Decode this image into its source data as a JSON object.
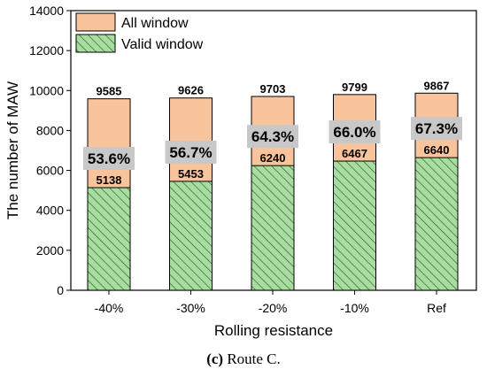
{
  "chart_data": {
    "type": "bar",
    "categories": [
      "-40%",
      "-30%",
      "-20%",
      "-10%",
      "Ref"
    ],
    "series": [
      {
        "name": "All window",
        "values": [
          9585,
          9626,
          9703,
          9799,
          9867
        ],
        "color": "#f9c49b",
        "pattern": "solid"
      },
      {
        "name": "Valid window",
        "values": [
          5138,
          5453,
          6240,
          6467,
          6640
        ],
        "color": "#a8dca0",
        "pattern": "hatched"
      }
    ],
    "valid_ratio_labels": [
      "53.6%",
      "56.7%",
      "64.3%",
      "66.0%",
      "67.3%"
    ],
    "xlabel": "Rolling resistance",
    "ylabel": "The number of MAW",
    "ylim": [
      0,
      14000
    ],
    "yticks": [
      0,
      2000,
      4000,
      6000,
      8000,
      10000,
      12000,
      14000
    ],
    "grid": false,
    "legend_position": "top-left"
  },
  "caption": {
    "letter": "(c)",
    "text": "Route C."
  },
  "colors": {
    "all_fill": "#f9c49b",
    "valid_fill": "#a8dca0",
    "outline": "#000000",
    "pct_box": "#c8c8c8"
  }
}
